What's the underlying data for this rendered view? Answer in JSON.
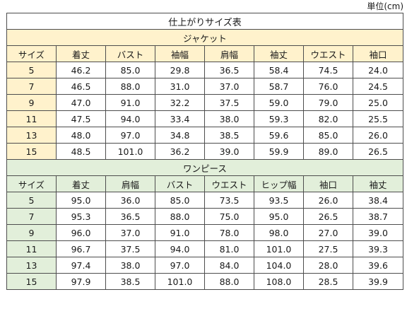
{
  "unit_label": "単位(cm)",
  "title": "仕上がりサイズ表",
  "jacket": {
    "section_label": "ジャケット",
    "headers": [
      "サイズ",
      "着丈",
      "バスト",
      "袖幅",
      "肩幅",
      "袖丈",
      "ウエスト",
      "袖口"
    ],
    "rows": [
      [
        "5",
        "46.2",
        "85.0",
        "29.8",
        "36.5",
        "58.4",
        "74.5",
        "24.0"
      ],
      [
        "7",
        "46.5",
        "88.0",
        "31.0",
        "37.0",
        "58.7",
        "76.0",
        "24.5"
      ],
      [
        "9",
        "47.0",
        "91.0",
        "32.2",
        "37.5",
        "59.0",
        "79.0",
        "25.0"
      ],
      [
        "11",
        "47.5",
        "94.0",
        "33.4",
        "38.0",
        "59.3",
        "82.0",
        "25.5"
      ],
      [
        "13",
        "48.0",
        "97.0",
        "34.8",
        "38.5",
        "59.6",
        "85.0",
        "26.0"
      ],
      [
        "15",
        "48.5",
        "101.0",
        "36.2",
        "39.0",
        "59.9",
        "89.0",
        "26.5"
      ]
    ]
  },
  "onepiece": {
    "section_label": "ワンピース",
    "headers": [
      "サイズ",
      "着丈",
      "肩幅",
      "バスト",
      "ウエスト",
      "ヒップ幅",
      "袖口",
      "袖丈"
    ],
    "rows": [
      [
        "5",
        "95.0",
        "36.0",
        "85.0",
        "73.5",
        "93.5",
        "26.0",
        "38.4"
      ],
      [
        "7",
        "95.3",
        "36.5",
        "88.0",
        "75.0",
        "95.0",
        "26.5",
        "38.7"
      ],
      [
        "9",
        "96.0",
        "37.0",
        "91.0",
        "78.0",
        "98.0",
        "27.0",
        "39.0"
      ],
      [
        "11",
        "96.7",
        "37.5",
        "94.0",
        "81.0",
        "101.0",
        "27.5",
        "39.3"
      ],
      [
        "13",
        "97.4",
        "38.0",
        "97.0",
        "84.0",
        "104.0",
        "28.0",
        "39.6"
      ],
      [
        "15",
        "97.9",
        "38.5",
        "101.0",
        "88.0",
        "108.0",
        "28.5",
        "39.9"
      ]
    ]
  },
  "colors": {
    "jacket_fill": "#fff2cc",
    "onepiece_fill": "#e2efda",
    "border": "#4d4d4d"
  }
}
